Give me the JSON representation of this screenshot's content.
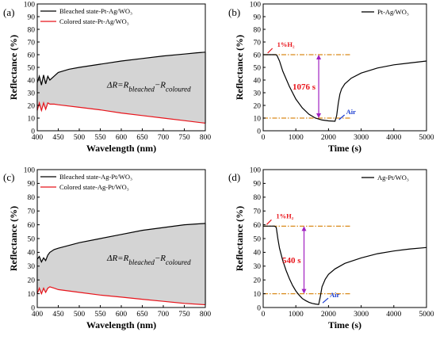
{
  "chart_data": [
    {
      "panel": "(a)",
      "type": "line",
      "xlabel": "Wavelength (nm)",
      "ylabel": "Reflectance (%)",
      "xlim": [
        400,
        800
      ],
      "ylim": [
        0,
        100
      ],
      "xticks": [
        400,
        450,
        500,
        550,
        600,
        650,
        700,
        750,
        800
      ],
      "yticks": [
        0,
        10,
        20,
        30,
        40,
        50,
        60,
        70,
        80,
        90,
        100
      ],
      "legend_position": "top-left",
      "annotation": {
        "prefix": "ΔR=R",
        "sub1": "bleached",
        "mid": "−R",
        "sub2": "coloured"
      },
      "series": [
        {
          "name": "Bleached state-Pt-Ag/WO₃",
          "color": "#000000",
          "x": [
            400,
            405,
            410,
            415,
            420,
            425,
            430,
            440,
            450,
            475,
            500,
            550,
            600,
            650,
            700,
            750,
            780,
            800
          ],
          "y": [
            38,
            43,
            36,
            44,
            37,
            43,
            40,
            43,
            46,
            48.5,
            50,
            52.5,
            55,
            57,
            59,
            60.5,
            61.5,
            62
          ]
        },
        {
          "name": "Colored state-Pt-Ag/WO₃",
          "color": "#e8141b",
          "x": [
            400,
            405,
            410,
            415,
            420,
            425,
            430,
            440,
            450,
            500,
            550,
            600,
            650,
            700,
            750,
            800
          ],
          "y": [
            16,
            22,
            16,
            22,
            17,
            22,
            21,
            21,
            20.5,
            18.5,
            16.5,
            14,
            12,
            10,
            8,
            6
          ]
        }
      ],
      "fill_between": {
        "color": "#d4d4d4"
      }
    },
    {
      "panel": "(b)",
      "type": "line",
      "xlabel": "Time (s)",
      "ylabel": "Reflectance (%)",
      "xlim": [
        0,
        5000
      ],
      "ylim": [
        0,
        100
      ],
      "xticks": [
        0,
        1000,
        2000,
        3000,
        4000,
        5000
      ],
      "yticks": [
        0,
        10,
        20,
        30,
        40,
        50,
        60,
        70,
        80,
        90,
        100
      ],
      "legend_position": "top-right",
      "series": [
        {
          "name": "Pt-Ag/WO₃",
          "color": "#000000",
          "x": [
            0,
            380,
            420,
            500,
            600,
            800,
            1000,
            1200,
            1400,
            1600,
            1800,
            2000,
            2200,
            2250,
            2300,
            2350,
            2400,
            2500,
            2700,
            3000,
            3500,
            4000,
            4500,
            5000
          ],
          "y": [
            60,
            60,
            59.5,
            55,
            47,
            35,
            25,
            18,
            13,
            10,
            8.5,
            7.8,
            7.5,
            12,
            22,
            29,
            33,
            37,
            41.5,
            45.5,
            49.5,
            52,
            53.5,
            55
          ]
        }
      ],
      "hlines": [
        {
          "y": 60,
          "color": "#d98a1a"
        },
        {
          "y": 10,
          "color": "#d98a1a"
        }
      ],
      "arrow": {
        "x": 1700,
        "y1": 60,
        "y2": 10,
        "color": "#a020c0"
      },
      "annotations": {
        "gas": "1%H₂",
        "duration": "1076 s",
        "air": "Air"
      }
    },
    {
      "panel": "(c)",
      "type": "line",
      "xlabel": "Wavelength (nm)",
      "ylabel": "Reflectance (%)",
      "xlim": [
        400,
        800
      ],
      "ylim": [
        0,
        100
      ],
      "xticks": [
        400,
        450,
        500,
        550,
        600,
        650,
        700,
        750,
        800
      ],
      "yticks": [
        0,
        10,
        20,
        30,
        40,
        50,
        60,
        70,
        80,
        90,
        100
      ],
      "legend_position": "top-left",
      "annotation": {
        "prefix": "ΔR=R",
        "sub1": "bleached",
        "mid": "−R",
        "sub2": "coloured"
      },
      "series": [
        {
          "name": "Bleached state-Ag-Pt/WO₃",
          "color": "#000000",
          "x": [
            400,
            405,
            410,
            415,
            420,
            425,
            430,
            440,
            450,
            475,
            500,
            550,
            600,
            650,
            700,
            750,
            800
          ],
          "y": [
            35,
            37,
            33,
            36,
            34,
            38,
            40,
            42,
            43,
            45,
            47,
            50,
            53,
            56,
            58,
            60,
            61
          ]
        },
        {
          "name": "Colored state-Ag-Pt/WO₃",
          "color": "#e8141b",
          "x": [
            400,
            405,
            410,
            415,
            420,
            425,
            430,
            440,
            450,
            500,
            550,
            600,
            650,
            700,
            750,
            800
          ],
          "y": [
            10,
            14,
            10,
            14,
            11,
            14,
            15,
            14,
            13,
            11,
            9,
            7.5,
            6,
            4.5,
            3,
            2
          ]
        }
      ],
      "fill_between": {
        "color": "#d4d4d4"
      }
    },
    {
      "panel": "(d)",
      "type": "line",
      "xlabel": "Time (s)",
      "ylabel": "Reflectance (%)",
      "xlim": [
        0,
        5000
      ],
      "ylim": [
        0,
        100
      ],
      "xticks": [
        0,
        1000,
        2000,
        3000,
        4000,
        5000
      ],
      "yticks": [
        0,
        10,
        20,
        30,
        40,
        50,
        60,
        70,
        80,
        90,
        100
      ],
      "legend_position": "top-right",
      "series": [
        {
          "name": "Ag-Pt/WO₃",
          "color": "#000000",
          "x": [
            0,
            350,
            400,
            450,
            500,
            600,
            700,
            800,
            900,
            1000,
            1100,
            1200,
            1300,
            1400,
            1500,
            1600,
            1700,
            1750,
            1800,
            1900,
            2000,
            2200,
            2500,
            3000,
            3500,
            4000,
            4500,
            5000
          ],
          "y": [
            59,
            59,
            58,
            50,
            43,
            34,
            27,
            21,
            16,
            12,
            9,
            6.5,
            5,
            3.8,
            3,
            2.5,
            2.2,
            8,
            15,
            20.5,
            24,
            28,
            32,
            36,
            39,
            41,
            42.5,
            43.5
          ]
        }
      ],
      "hlines": [
        {
          "y": 59,
          "color": "#d98a1a"
        },
        {
          "y": 10,
          "color": "#d98a1a"
        }
      ],
      "arrow": {
        "x": 1250,
        "y1": 59,
        "y2": 10,
        "color": "#a020c0"
      },
      "annotations": {
        "gas": "1%H₂",
        "duration": "540 s",
        "air": "Air"
      }
    }
  ]
}
